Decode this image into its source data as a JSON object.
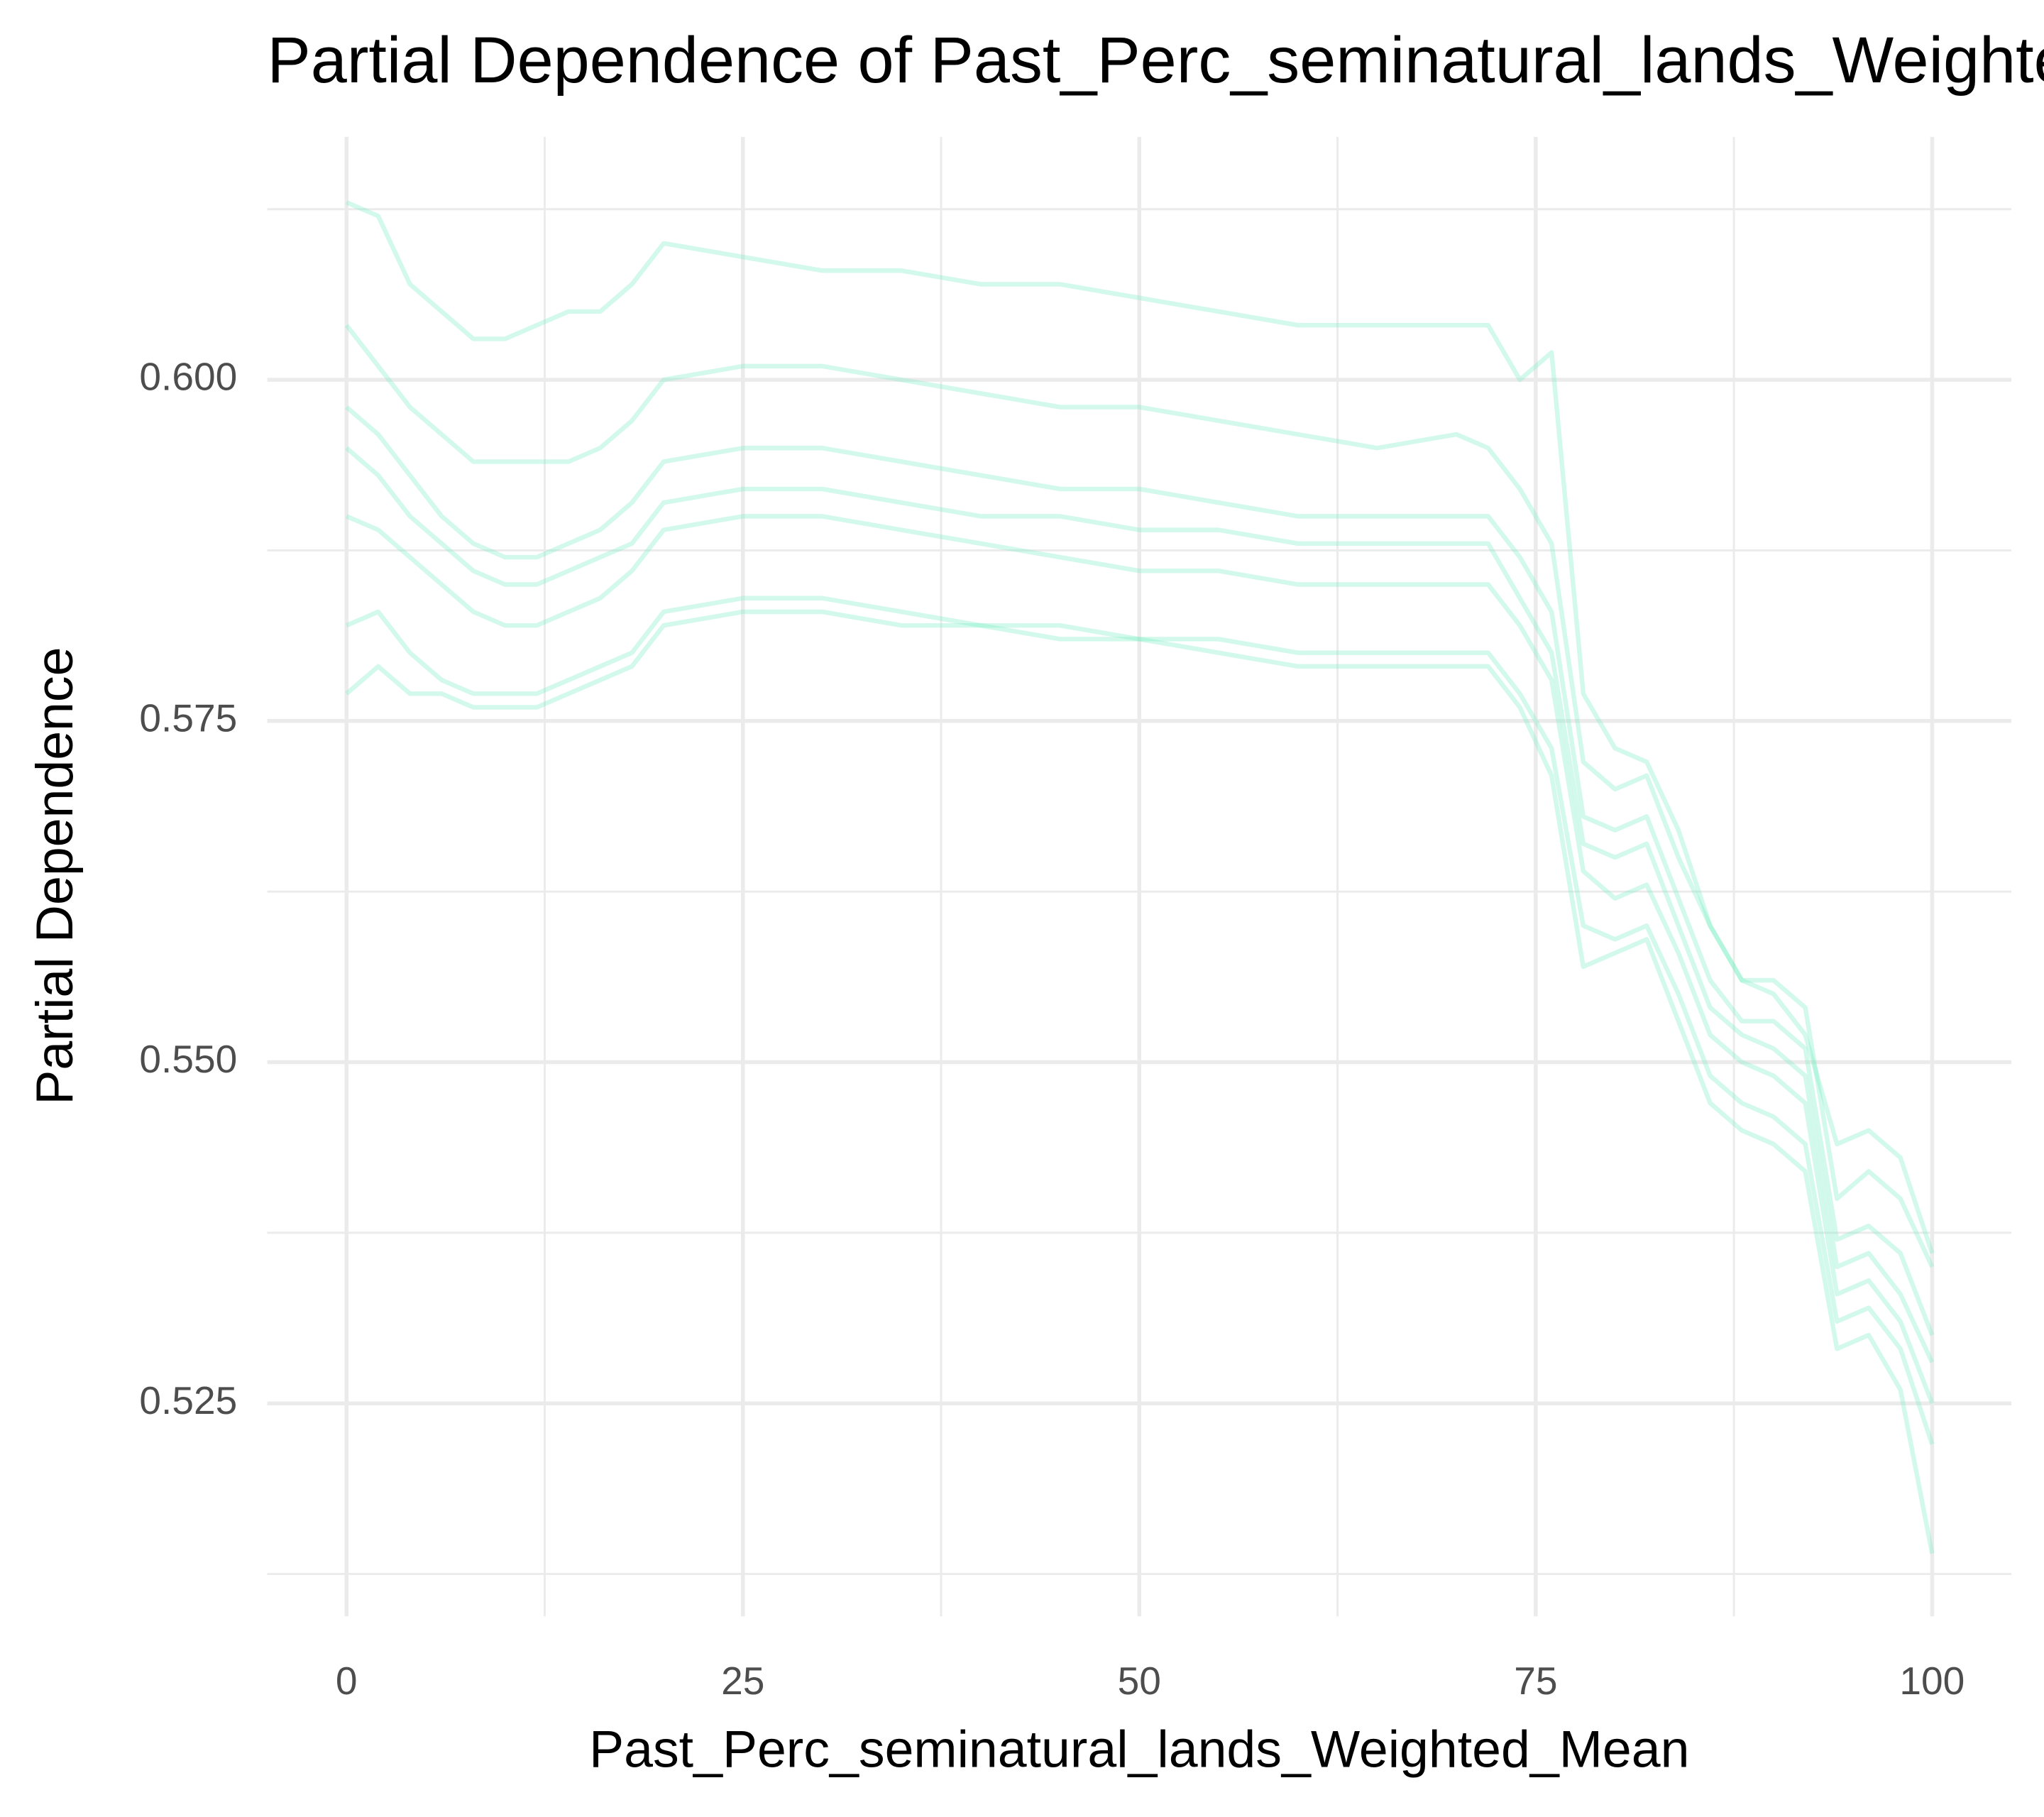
{
  "chart_data": {
    "type": "line",
    "title": "Partial Dependence of Past_Perc_seminatural_lands_Weighted_Mean",
    "x_label": "Past_Perc_seminatural_lands_Weighted_Mean",
    "y_label": "Partial Dependence",
    "xlim": [
      -5,
      105
    ],
    "ylim": [
      0.5094,
      0.6178
    ],
    "xticks": [
      0,
      25,
      50,
      75,
      100
    ],
    "yticks": [
      0.525,
      {
        "value": 0.55,
        "label": "0.550"
      },
      0.575,
      {
        "value": 0.6,
        "label": "0.600"
      }
    ],
    "grid": true,
    "x": [
      0,
      2,
      4,
      6,
      8,
      10,
      12,
      14,
      16,
      18,
      20,
      25,
      30,
      35,
      40,
      45,
      50,
      55,
      60,
      65,
      70,
      72,
      74,
      76,
      78,
      80,
      82,
      84,
      86,
      88,
      90,
      92,
      94,
      96,
      98,
      100
    ],
    "series": [
      {
        "color": "#7eefc6",
        "values": [
          0.613,
          0.612,
          0.607,
          0.605,
          0.603,
          0.603,
          0.604,
          0.605,
          0.605,
          0.607,
          0.61,
          0.609,
          0.608,
          0.608,
          0.607,
          0.607,
          0.606,
          0.605,
          0.604,
          0.604,
          0.604,
          0.604,
          0.6,
          0.602,
          0.577,
          0.573,
          0.572,
          0.567,
          0.56,
          0.556,
          0.555,
          0.552,
          0.544,
          0.545,
          0.543,
          0.536
        ]
      },
      {
        "color": "#7eefc6",
        "values": [
          0.604,
          0.601,
          0.598,
          0.596,
          0.594,
          0.594,
          0.594,
          0.594,
          0.595,
          0.597,
          0.6,
          0.601,
          0.601,
          0.6,
          0.599,
          0.598,
          0.598,
          0.597,
          0.596,
          0.595,
          0.596,
          0.595,
          0.592,
          0.588,
          0.572,
          0.57,
          0.571,
          0.565,
          0.56,
          0.556,
          0.556,
          0.554,
          0.54,
          0.542,
          0.54,
          0.535
        ]
      },
      {
        "color": "#7eefc6",
        "values": [
          0.598,
          0.596,
          0.593,
          0.59,
          0.588,
          0.587,
          0.587,
          0.588,
          0.589,
          0.591,
          0.594,
          0.595,
          0.595,
          0.594,
          0.593,
          0.592,
          0.592,
          0.591,
          0.59,
          0.59,
          0.59,
          0.59,
          0.587,
          0.583,
          0.568,
          0.567,
          0.568,
          0.562,
          0.556,
          0.553,
          0.553,
          0.551,
          0.537,
          0.538,
          0.536,
          0.53
        ]
      },
      {
        "color": "#7eefc6",
        "values": [
          0.595,
          0.593,
          0.59,
          0.588,
          0.586,
          0.585,
          0.585,
          0.586,
          0.587,
          0.588,
          0.591,
          0.592,
          0.592,
          0.591,
          0.59,
          0.59,
          0.589,
          0.589,
          0.588,
          0.588,
          0.588,
          0.588,
          0.584,
          0.58,
          0.566,
          0.565,
          0.566,
          0.56,
          0.554,
          0.552,
          0.551,
          0.549,
          0.535,
          0.536,
          0.533,
          0.528
        ]
      },
      {
        "color": "#7eefc6",
        "values": [
          0.59,
          0.589,
          0.587,
          0.585,
          0.583,
          0.582,
          0.582,
          0.583,
          0.584,
          0.586,
          0.589,
          0.59,
          0.59,
          0.589,
          0.588,
          0.587,
          0.586,
          0.586,
          0.585,
          0.585,
          0.585,
          0.585,
          0.582,
          0.578,
          0.564,
          0.562,
          0.563,
          0.558,
          0.552,
          0.55,
          0.549,
          0.547,
          0.533,
          0.534,
          0.531,
          0.525
        ]
      },
      {
        "color": "#7eefc6",
        "values": [
          0.582,
          0.583,
          0.58,
          0.578,
          0.577,
          0.577,
          0.577,
          0.578,
          0.579,
          0.58,
          0.583,
          0.584,
          0.584,
          0.583,
          0.582,
          0.582,
          0.581,
          0.581,
          0.58,
          0.58,
          0.58,
          0.58,
          0.577,
          0.573,
          0.56,
          0.559,
          0.56,
          0.555,
          0.549,
          0.547,
          0.546,
          0.544,
          0.531,
          0.532,
          0.529,
          0.522
        ]
      },
      {
        "color": "#7eefc6",
        "values": [
          0.577,
          0.579,
          0.577,
          0.577,
          0.576,
          0.576,
          0.576,
          0.577,
          0.578,
          0.579,
          0.582,
          0.583,
          0.583,
          0.582,
          0.582,
          0.581,
          0.581,
          0.58,
          0.579,
          0.579,
          0.579,
          0.579,
          0.576,
          0.571,
          0.557,
          0.558,
          0.559,
          0.553,
          0.547,
          0.545,
          0.544,
          0.542,
          0.529,
          0.53,
          0.526,
          0.514
        ]
      }
    ]
  }
}
